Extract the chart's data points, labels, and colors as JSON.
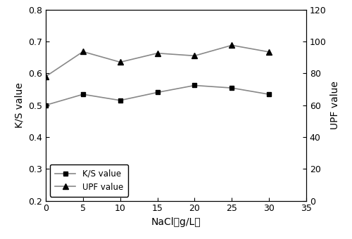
{
  "x": [
    0,
    5,
    10,
    15,
    20,
    25,
    30
  ],
  "ks_values": [
    0.5,
    0.534,
    0.515,
    0.54,
    0.562,
    0.554,
    0.534
  ],
  "upf_values": [
    0.59,
    0.668,
    0.635,
    0.663,
    0.655,
    0.688,
    0.667
  ],
  "xlabel": "NaCl（g/L）",
  "ylabel_left": "K/S value",
  "ylabel_right": "UPF value",
  "legend_ks": "K/S value",
  "legend_upf": "UPF value",
  "xlim": [
    0,
    35
  ],
  "ylim_left": [
    0.2,
    0.8
  ],
  "ylim_right": [
    0,
    120
  ],
  "xticks": [
    0,
    5,
    10,
    15,
    20,
    25,
    30,
    35
  ],
  "yticks_left": [
    0.2,
    0.3,
    0.4,
    0.5,
    0.6,
    0.7,
    0.8
  ],
  "yticks_right": [
    0,
    20,
    40,
    60,
    80,
    100,
    120
  ],
  "line_color": "#888888",
  "marker_color": "#000000",
  "background_color": "#ffffff",
  "figsize": [
    5.0,
    3.4
  ],
  "dpi": 100
}
